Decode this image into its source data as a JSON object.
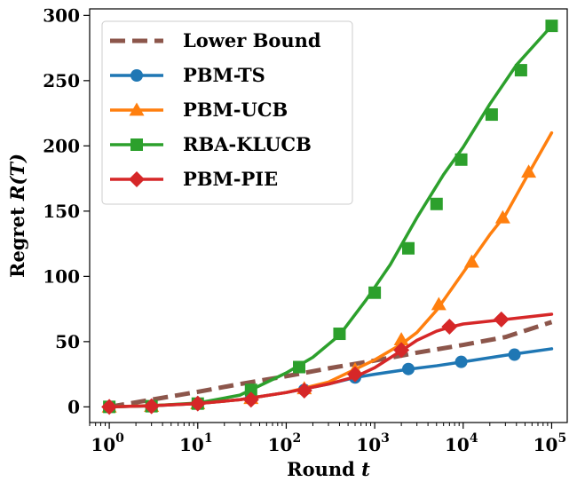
{
  "chart_data": {
    "type": "line",
    "xscale": "log",
    "xlabel_text": "Round ",
    "xlabel_var": "t",
    "ylabel_text": "Regret ",
    "ylabel_var": "R(T)",
    "xlim": [
      0.6,
      150000
    ],
    "ylim": [
      -12,
      305
    ],
    "xticks": [
      {
        "value": 1,
        "base": "10",
        "exp": "0"
      },
      {
        "value": 10,
        "base": "10",
        "exp": "1"
      },
      {
        "value": 100,
        "base": "10",
        "exp": "2"
      },
      {
        "value": 1000,
        "base": "10",
        "exp": "3"
      },
      {
        "value": 10000,
        "base": "10",
        "exp": "4"
      },
      {
        "value": 100000,
        "base": "10",
        "exp": "5"
      }
    ],
    "yticks": [
      {
        "value": 0,
        "label": "0"
      },
      {
        "value": 50,
        "label": "50"
      },
      {
        "value": 100,
        "label": "100"
      },
      {
        "value": 150,
        "label": "150"
      },
      {
        "value": 200,
        "label": "200"
      },
      {
        "value": 250,
        "label": "250"
      },
      {
        "value": 300,
        "label": "300"
      }
    ],
    "grid": false,
    "legend_position": "top-left",
    "series": [
      {
        "name": "Lower Bound",
        "color": "#8c564b",
        "marker": "none",
        "dashed": true,
        "x": [
          1,
          3,
          10,
          30,
          100,
          300,
          1000,
          3000,
          10000,
          30000,
          100000
        ],
        "y": [
          0,
          5.5,
          11.5,
          17.5,
          23.5,
          29.5,
          35.5,
          41.5,
          47.5,
          53.5,
          65
        ],
        "markers_x": [],
        "markers_y": []
      },
      {
        "name": "PBM-TS",
        "color": "#1f77b4",
        "marker": "circle",
        "dashed": false,
        "x": [
          1,
          3,
          10,
          30,
          100,
          300,
          600,
          1000,
          2500,
          5000,
          10000,
          30000,
          100000
        ],
        "y": [
          0,
          0.8,
          2.5,
          5.5,
          11,
          17.5,
          22.5,
          25,
          29,
          31.5,
          34.5,
          39.5,
          44.5
        ],
        "markers_x": [
          1,
          3,
          10,
          40,
          160,
          600,
          2400,
          9500,
          38000
        ],
        "markers_y": [
          0,
          0.5,
          2.5,
          6.5,
          13,
          22.5,
          29,
          34.5,
          40
        ]
      },
      {
        "name": "PBM-UCB",
        "color": "#ff7f0e",
        "marker": "triangle",
        "dashed": false,
        "x": [
          1,
          3,
          10,
          30,
          100,
          300,
          1000,
          2000,
          3000,
          5000,
          10000,
          20000,
          30000,
          50000,
          100000
        ],
        "y": [
          0,
          1,
          2.5,
          5.5,
          11,
          19,
          36,
          48,
          57,
          74,
          103,
          132,
          147,
          174,
          210
        ],
        "markers_x": [
          1,
          3,
          10,
          40,
          160,
          600,
          2000,
          5300,
          12500,
          28000,
          55000
        ],
        "markers_y": [
          0,
          0.5,
          2.5,
          6.5,
          14,
          28.5,
          51.5,
          78.5,
          111,
          145,
          180
        ]
      },
      {
        "name": "RBA-KLUCB",
        "color": "#2ca02c",
        "marker": "square",
        "dashed": false,
        "x": [
          1,
          3,
          10,
          30,
          100,
          200,
          400,
          800,
          1500,
          3000,
          6000,
          10000,
          20000,
          40000,
          100000
        ],
        "y": [
          0,
          0.8,
          3,
          9,
          26,
          38,
          55,
          82,
          109,
          145,
          178,
          199,
          232,
          262,
          292
        ],
        "markers_x": [
          1,
          3,
          10,
          40,
          140,
          400,
          1000,
          2400,
          5000,
          9500,
          21000,
          45000,
          100000
        ],
        "markers_y": [
          0,
          0.5,
          2.5,
          13,
          30.5,
          56,
          87.5,
          121.5,
          155.5,
          189.5,
          224,
          258,
          292
        ]
      },
      {
        "name": "PBM-PIE",
        "color": "#d62728",
        "marker": "diamond",
        "dashed": false,
        "x": [
          1,
          3,
          10,
          30,
          100,
          300,
          600,
          1000,
          2000,
          3000,
          5000,
          7000,
          10000,
          30000,
          100000
        ],
        "y": [
          0,
          0.8,
          2.5,
          5.5,
          11,
          17.5,
          23,
          30,
          43,
          51,
          58,
          61,
          63.5,
          67,
          71
        ],
        "markers_x": [
          1,
          3,
          10,
          40,
          160,
          600,
          2000,
          7000,
          27000
        ],
        "markers_y": [
          0,
          0.5,
          2.5,
          5.5,
          12.5,
          25,
          43.5,
          61.5,
          67
        ]
      }
    ]
  }
}
